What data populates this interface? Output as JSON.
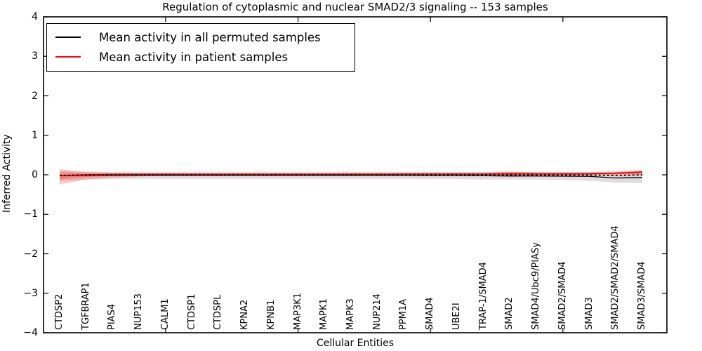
{
  "page": {
    "background": "#ffffff"
  },
  "legend": {
    "items": [
      {
        "label": "Mean activity in all permuted samples",
        "swatch_color": "#000000"
      },
      {
        "label": "Mean activity in patient samples",
        "swatch_color": "#ff0000"
      }
    ]
  },
  "chart_data": {
    "type": "line",
    "title": "Regulation of cytoplasmic and nuclear SMAD2/3 signaling -- 153 samples",
    "xlabel": "Cellular Entities",
    "ylabel": "Inferred Activity",
    "ylim": [
      -4,
      4
    ],
    "yticks": [
      4,
      3,
      2,
      1,
      0,
      -1,
      -2,
      -3,
      -4
    ],
    "ytick_labels": [
      "4",
      "3",
      "2",
      "1",
      "0",
      "−1",
      "−2",
      "−3",
      "−4"
    ],
    "grid": false,
    "legend_position": "upper left",
    "categories": [
      "CTDSP2",
      "TGFBRAP1",
      "PIAS4",
      "NUP153",
      "CALM1",
      "CTDSP1",
      "CTDSPL",
      "KPNA2",
      "KPNB1",
      "MAP3K1",
      "MAPK1",
      "MAPK3",
      "NUP214",
      "PPM1A",
      "SMAD4",
      "UBE2I",
      "TRAP-1/SMAD4",
      "SMAD2",
      "SMAD4/Ubc9/PIASy",
      "SMAD2/SMAD4",
      "SMAD3",
      "SMAD2/SMAD2/SMAD4",
      "SMAD3/SMAD4"
    ],
    "major_xtick_category_indices": [
      4,
      9,
      14,
      19
    ],
    "series": [
      {
        "name": "Mean activity in all permuted samples",
        "color": "#000000",
        "line_style": "solid",
        "values": [
          -0.02,
          -0.015,
          -0.012,
          -0.012,
          -0.012,
          -0.012,
          -0.012,
          -0.012,
          -0.012,
          -0.012,
          -0.012,
          -0.012,
          -0.012,
          -0.015,
          -0.02,
          -0.02,
          -0.025,
          -0.03,
          -0.03,
          -0.035,
          -0.04,
          -0.08,
          -0.07
        ],
        "band_upper": [
          0.1,
          0.08,
          0.07,
          0.07,
          0.07,
          0.07,
          0.07,
          0.07,
          0.07,
          0.07,
          0.07,
          0.07,
          0.07,
          0.07,
          0.07,
          0.07,
          0.07,
          0.07,
          0.07,
          0.07,
          0.06,
          0.04,
          0.04
        ],
        "band_lower": [
          -0.15,
          -0.12,
          -0.11,
          -0.1,
          -0.1,
          -0.1,
          -0.1,
          -0.1,
          -0.1,
          -0.1,
          -0.1,
          -0.1,
          -0.1,
          -0.1,
          -0.11,
          -0.11,
          -0.12,
          -0.12,
          -0.12,
          -0.13,
          -0.15,
          -0.2,
          -0.21
        ],
        "band_color": "#888888"
      },
      {
        "name": "Mean activity in patient samples",
        "color": "#ff0000",
        "line_style": "solid",
        "values": [
          -0.02,
          0.0,
          0.01,
          0.012,
          0.012,
          0.012,
          0.012,
          0.012,
          0.012,
          0.012,
          0.012,
          0.015,
          0.015,
          0.018,
          0.02,
          0.02,
          0.02,
          0.03,
          0.025,
          0.025,
          0.03,
          0.04,
          0.07
        ],
        "band_upper": [
          0.14,
          0.07,
          0.05,
          0.04,
          0.04,
          0.04,
          0.04,
          0.04,
          0.04,
          0.04,
          0.04,
          0.04,
          0.04,
          0.05,
          0.05,
          0.05,
          0.05,
          0.08,
          0.06,
          0.06,
          0.06,
          0.09,
          0.12
        ],
        "band_lower": [
          -0.24,
          -0.12,
          -0.07,
          -0.04,
          -0.03,
          -0.03,
          -0.03,
          -0.03,
          -0.03,
          -0.03,
          -0.03,
          -0.03,
          -0.02,
          -0.02,
          -0.02,
          -0.02,
          -0.02,
          -0.05,
          -0.03,
          -0.03,
          -0.02,
          -0.02,
          -0.03
        ],
        "band_color": "#ff0000"
      }
    ],
    "overlay_marker_line": {
      "color": "#000000",
      "style": "dotted"
    }
  }
}
